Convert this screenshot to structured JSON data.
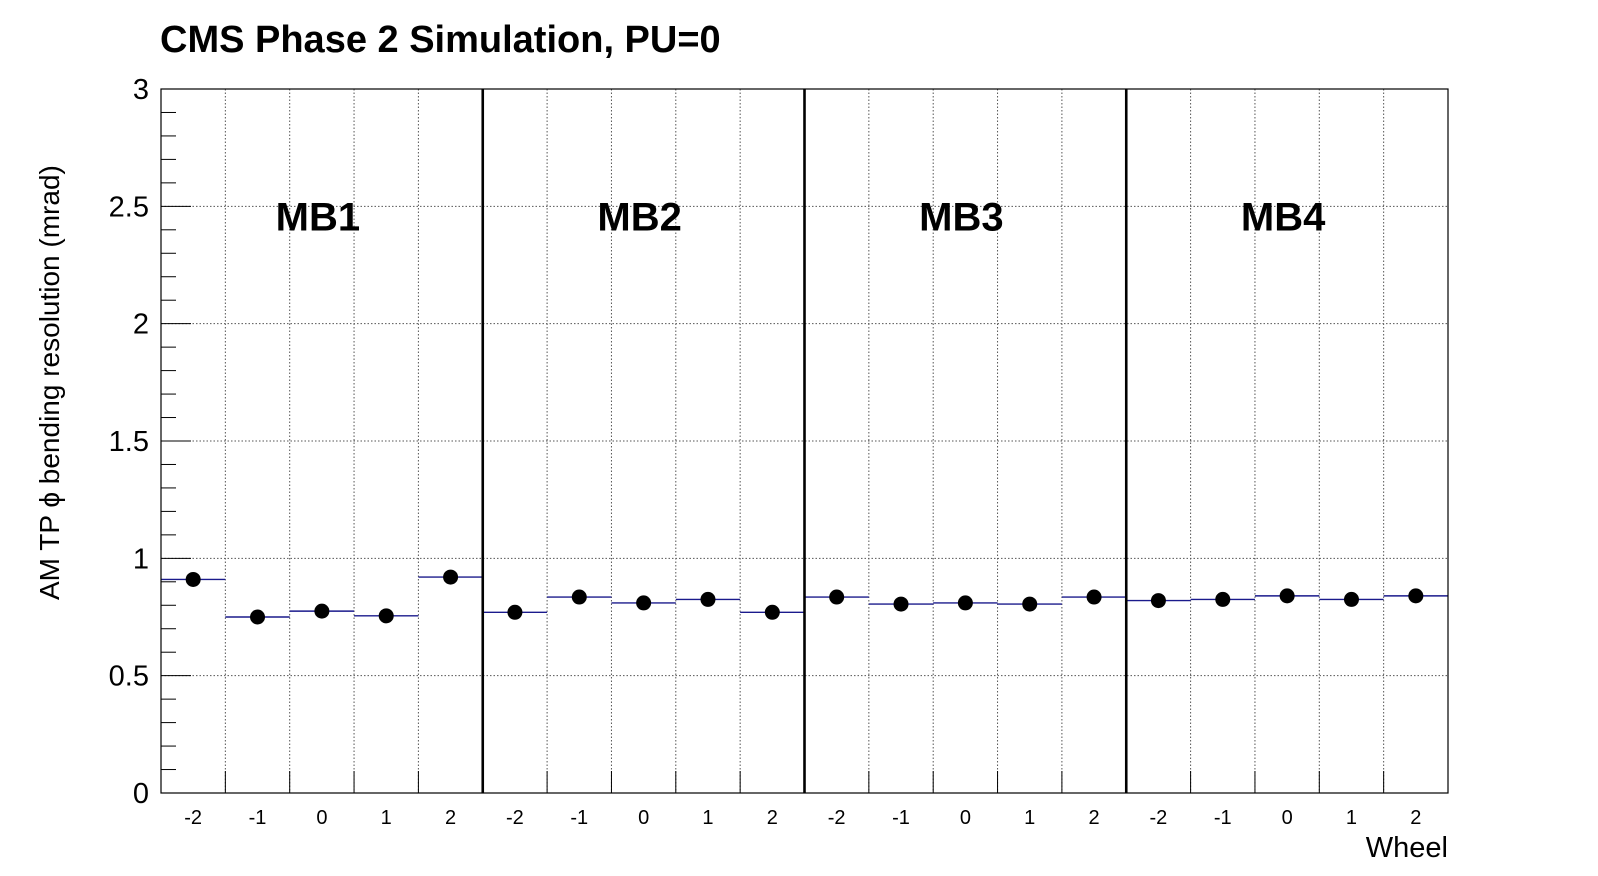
{
  "chart_data": {
    "type": "scatter",
    "title": "CMS Phase 2 Simulation, PU=0",
    "xlabel": "Wheel",
    "ylabel": "AM TP ϕ bending resolution (mrad)",
    "ylim": [
      0,
      3
    ],
    "yticks": [
      "0",
      "0.5",
      "1",
      "1.5",
      "2",
      "2.5",
      "3"
    ],
    "grid": true,
    "stations": [
      {
        "label": "MB1",
        "wheels": [
          "-2",
          "-1",
          "0",
          "1",
          "2"
        ],
        "values": [
          0.91,
          0.75,
          0.775,
          0.755,
          0.92
        ]
      },
      {
        "label": "MB2",
        "wheels": [
          "-2",
          "-1",
          "0",
          "1",
          "2"
        ],
        "values": [
          0.77,
          0.835,
          0.81,
          0.825,
          0.77
        ]
      },
      {
        "label": "MB3",
        "wheels": [
          "-2",
          "-1",
          "0",
          "1",
          "2"
        ],
        "values": [
          0.835,
          0.805,
          0.81,
          0.805,
          0.835
        ]
      },
      {
        "label": "MB4",
        "wheels": [
          "-2",
          "-1",
          "0",
          "1",
          "2"
        ],
        "values": [
          0.82,
          0.825,
          0.84,
          0.825,
          0.84
        ]
      }
    ],
    "colors": {
      "marker": "#000000",
      "bin_line": "#1a1a8c",
      "grid": "#555555"
    }
  }
}
